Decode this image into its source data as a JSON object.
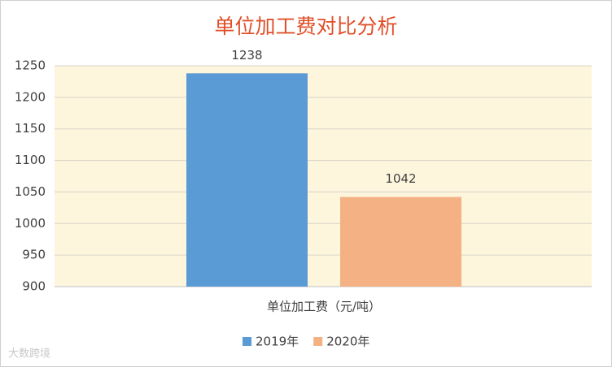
{
  "chart_data": {
    "type": "bar",
    "title": "单位加工费对比分析",
    "categories": [
      "单位加工费（元/吨）"
    ],
    "series": [
      {
        "name": "2019年",
        "color": "#5b9bd5",
        "values": [
          1238
        ]
      },
      {
        "name": "2020年",
        "color": "#f4b183",
        "values": [
          1042
        ]
      }
    ],
    "ylim": [
      900,
      1250
    ],
    "yticks": [
      900,
      950,
      1000,
      1050,
      1100,
      1150,
      1200,
      1250
    ],
    "grid": true,
    "legend": "bottom",
    "plot_background": "#fdf5dc",
    "watermark": "大数跨境"
  }
}
